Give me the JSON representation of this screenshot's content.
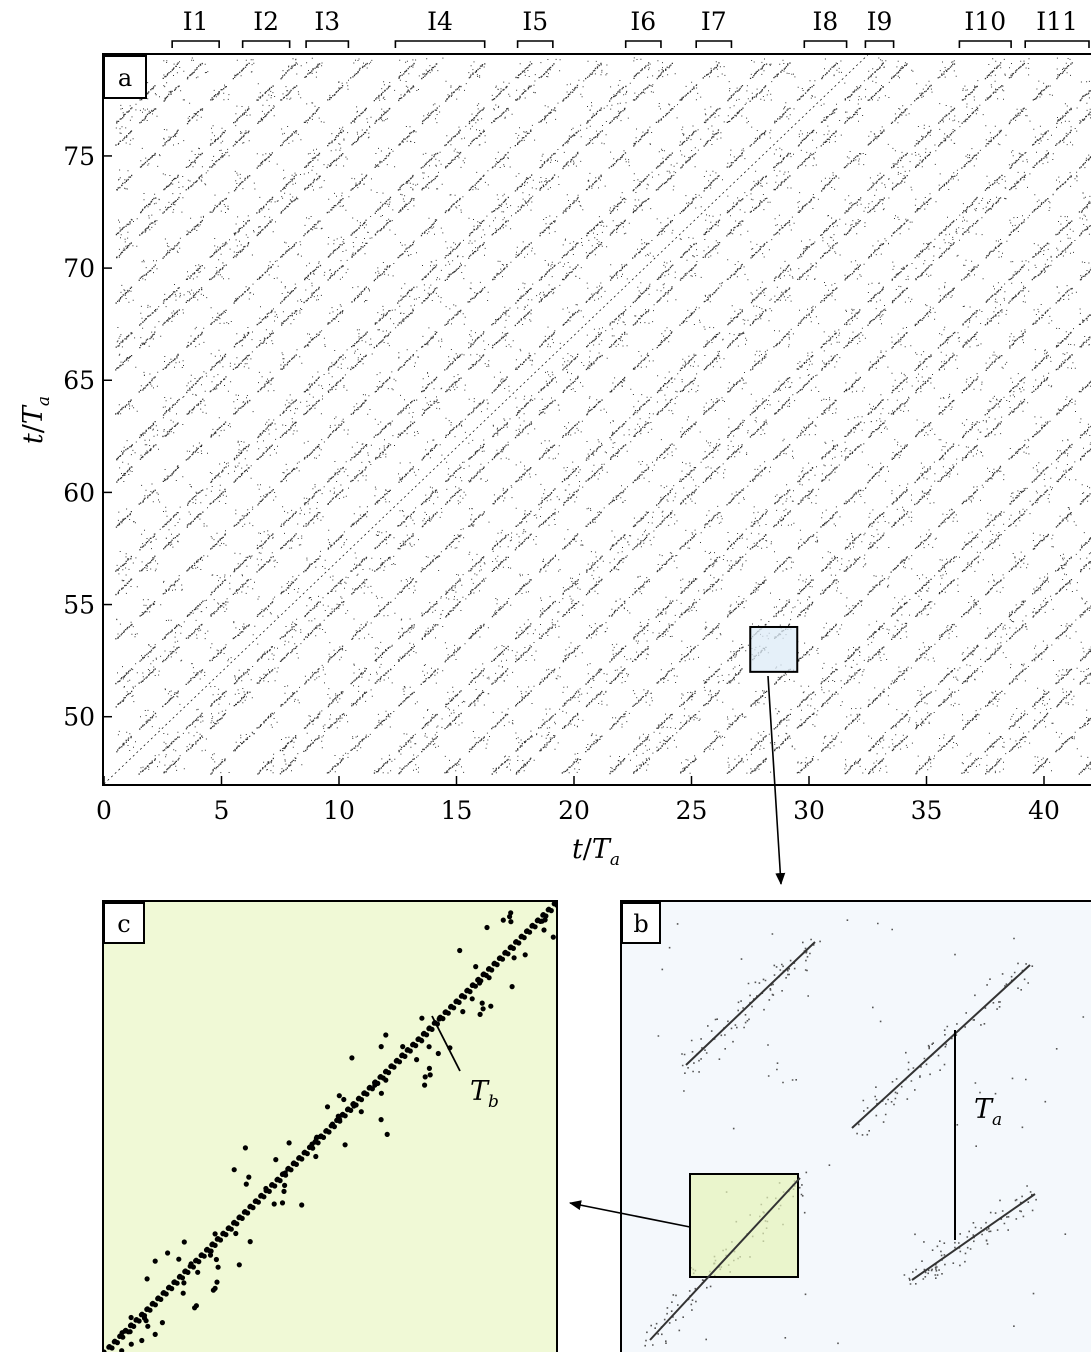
{
  "chart_data": [
    {
      "panel": "a",
      "type": "scatter",
      "xlabel": "t/T_a",
      "ylabel": "t/T_a",
      "xlim": [
        0,
        42
      ],
      "ylim": [
        47,
        79.5
      ],
      "xticks": [
        0,
        5,
        10,
        15,
        20,
        25,
        30,
        35,
        40
      ],
      "yticks": [
        50,
        55,
        60,
        65,
        70,
        75
      ],
      "grid": false,
      "intervals": [
        {
          "label": "I1",
          "x": [
            2.9,
            4.9
          ]
        },
        {
          "label": "I2",
          "x": [
            5.9,
            7.9
          ]
        },
        {
          "label": "I3",
          "x": [
            8.6,
            10.4
          ]
        },
        {
          "label": "I4",
          "x": [
            12.4,
            16.2
          ]
        },
        {
          "label": "I5",
          "x": [
            17.6,
            19.1
          ]
        },
        {
          "label": "I6",
          "x": [
            22.2,
            23.7
          ]
        },
        {
          "label": "I7",
          "x": [
            25.2,
            26.7
          ]
        },
        {
          "label": "I8",
          "x": [
            29.8,
            31.6
          ]
        },
        {
          "label": "I9",
          "x": [
            32.4,
            33.6
          ]
        },
        {
          "label": "I10",
          "x": [
            36.4,
            38.6
          ]
        },
        {
          "label": "I11",
          "x": [
            39.2,
            42.0
          ]
        }
      ],
      "zoom_box": {
        "x": [
          27.5,
          29.5
        ],
        "y": [
          52.0,
          54.0
        ],
        "to_panel": "b"
      }
    },
    {
      "panel": "b",
      "type": "scatter",
      "annotation": "T_a",
      "zoom_box_to_panel": "c"
    },
    {
      "panel": "c",
      "type": "scatter",
      "annotation": "T_b"
    }
  ],
  "labels": {
    "panel_a": "a",
    "panel_b": "b",
    "panel_c": "c",
    "x_axis_var": "t",
    "x_axis_den": "T",
    "x_axis_sub": "a",
    "y_axis_var": "t",
    "y_axis_den": "T",
    "y_axis_sub": "a",
    "ta_var": "T",
    "ta_sub": "a",
    "tb_var": "T",
    "tb_sub": "b"
  },
  "colors": {
    "zoom_b_fill": "#dcebf7",
    "panel_b_bg": "#f4f8fc",
    "panel_c_bg": "#f0f9d6",
    "zoom_c_fill": "#e6f3b8",
    "points": "#000000"
  }
}
